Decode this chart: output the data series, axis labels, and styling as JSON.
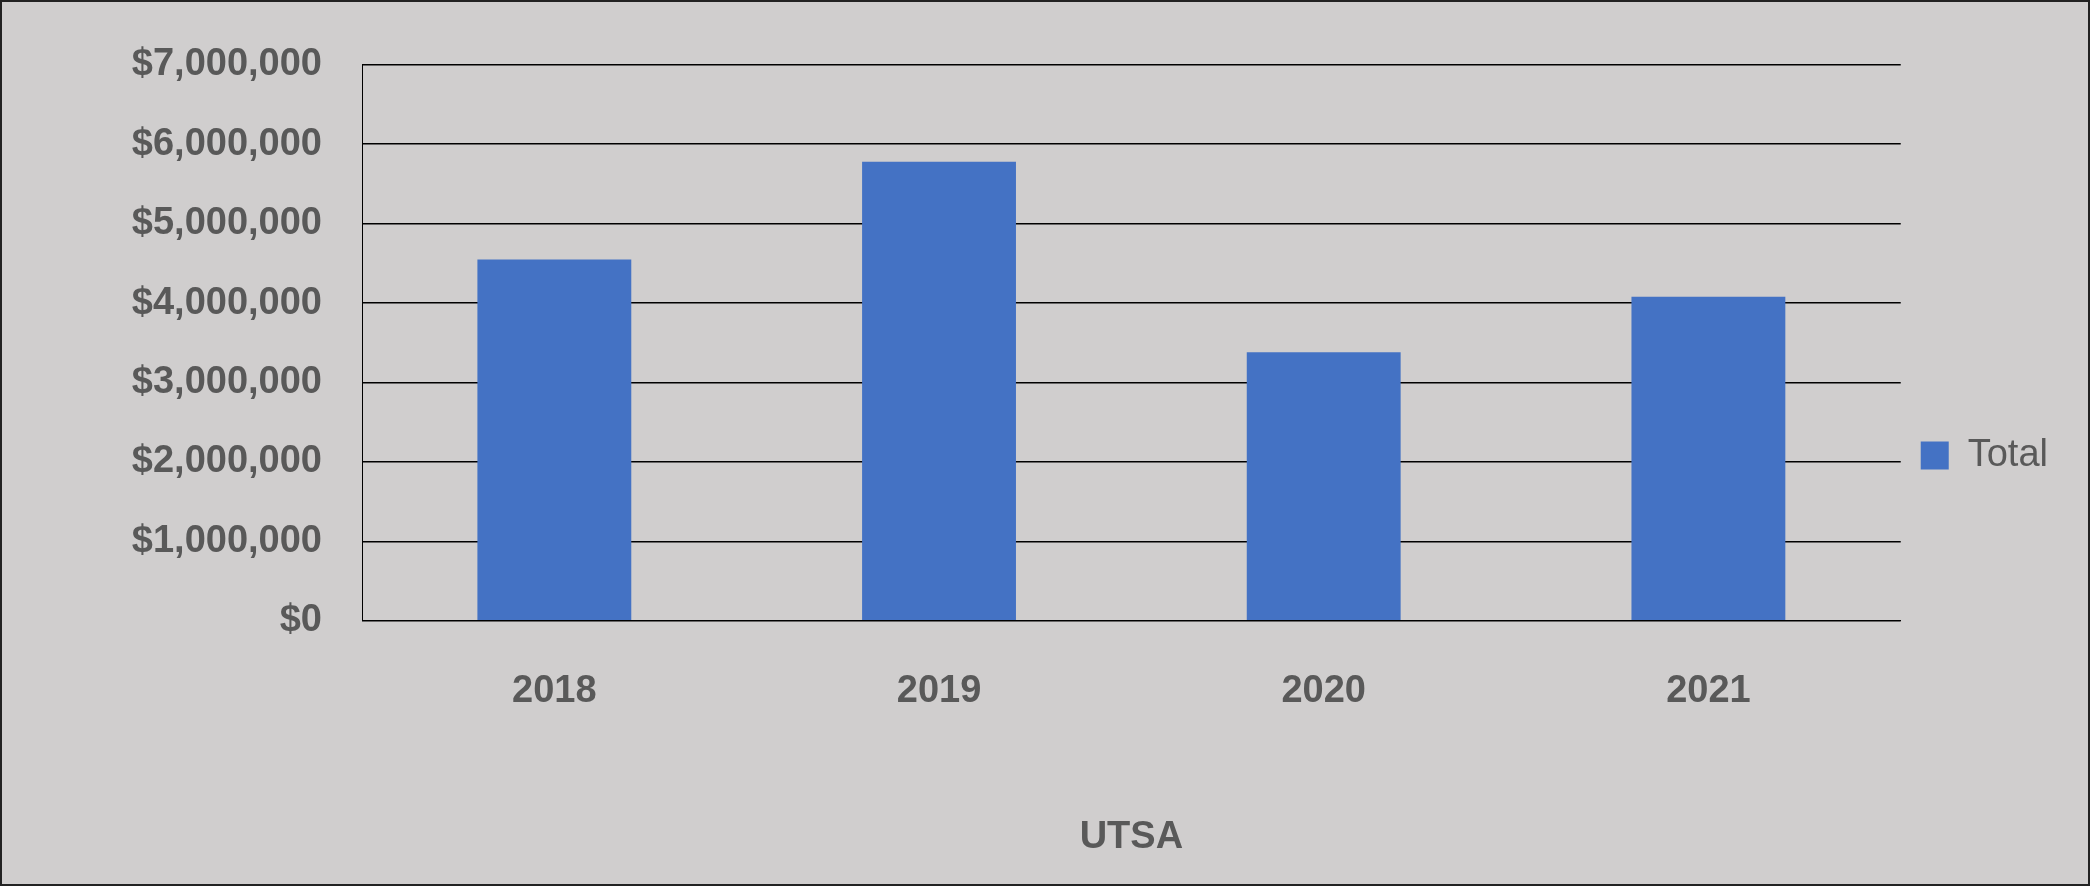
{
  "chart_data": {
    "type": "bar",
    "xlabel": "UTSA",
    "categories": [
      "2018",
      "2019",
      "2020",
      "2021"
    ],
    "series": [
      {
        "name": "Total",
        "color": "#4472c4",
        "values": [
          4550000,
          5780000,
          3380000,
          4080000
        ]
      }
    ],
    "ylim": [
      0,
      7000000
    ],
    "yticks": [
      {
        "value": 0,
        "label": "$0"
      },
      {
        "value": 1000000,
        "label": "$1,000,000"
      },
      {
        "value": 2000000,
        "label": "$2,000,000"
      },
      {
        "value": 3000000,
        "label": "$3,000,000"
      },
      {
        "value": 4000000,
        "label": "$4,000,000"
      },
      {
        "value": 5000000,
        "label": "$5,000,000"
      },
      {
        "value": 6000000,
        "label": "$6,000,000"
      },
      {
        "value": 7000000,
        "label": "$7,000,000"
      }
    ],
    "grid": "y",
    "legend": "right"
  }
}
